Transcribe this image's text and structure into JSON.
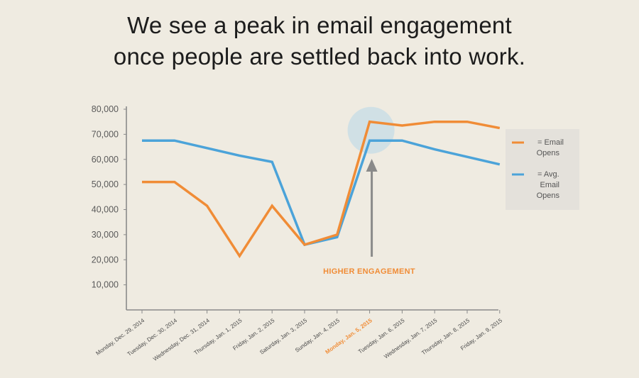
{
  "title_line1": "We see a peak in email engagement",
  "title_line2": "once people are settled back into work.",
  "chart_data": {
    "type": "line",
    "categories": [
      "Monday, Dec. 29, 2014",
      "Tuesday, Dec. 30, 2014",
      "Wednesday, Dec. 31, 2014",
      "Thursday, Jan. 1, 2015",
      "Friday, Jan. 2, 2015",
      "Saturday, Jan. 3, 2015",
      "Sunday, Jan. 4, 2015",
      "Monday, Jan. 5, 2015",
      "Tuesday, Jan. 6, 2015",
      "Wednesday, Jan. 7, 2015",
      "Thursday, Jan. 8, 2015",
      "Friday, Jan. 9, 2015"
    ],
    "highlight_category": "Monday, Jan. 5, 2015",
    "series": [
      {
        "name": "Email Opens",
        "legend_label": "= Email Opens",
        "color": "#f08c36",
        "values": [
          51000,
          51000,
          41500,
          21500,
          41500,
          26000,
          30000,
          75000,
          73500,
          75000,
          75000,
          72500
        ]
      },
      {
        "name": "Avg. Email Opens",
        "legend_label": "= Avg. Email Opens",
        "color": "#4ba3d9",
        "values": [
          67500,
          67500,
          64500,
          61500,
          59000,
          26000,
          29000,
          67500,
          67500,
          64000,
          61000,
          58000
        ]
      }
    ],
    "yticks": [
      10000,
      20000,
      30000,
      40000,
      50000,
      60000,
      70000,
      80000
    ],
    "ytick_labels": [
      "10,000",
      "20,000",
      "30,000",
      "40,000",
      "50,000",
      "60,000",
      "70,000",
      "80,000"
    ],
    "ylim": [
      0,
      80000
    ],
    "xlabel": "",
    "ylabel": "",
    "grid": false,
    "legend_position": "right",
    "annotation": {
      "text": "HIGHER ENGAGEMENT",
      "target_category": "Monday, Jan. 5, 2015",
      "color": "#f08c36",
      "highlight_color": "#c6dce6"
    }
  }
}
